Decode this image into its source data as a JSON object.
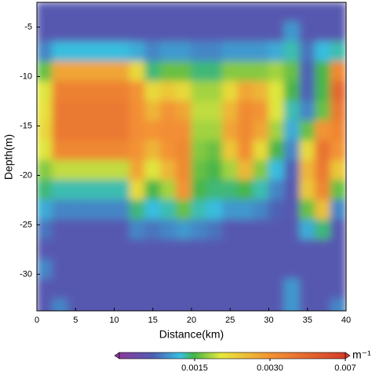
{
  "chart_data": {
    "type": "heatmap",
    "xlabel": "Distance(km)",
    "ylabel": "Depth(m)",
    "xlim": [
      0,
      40
    ],
    "ylim": [
      -33.7,
      -2.5
    ],
    "xticks": [
      0,
      5,
      10,
      15,
      20,
      25,
      30,
      35,
      40
    ],
    "yticks": [
      -5,
      -10,
      -15,
      -20,
      -25,
      -30
    ],
    "x": [
      1,
      3,
      5,
      7,
      9,
      11,
      13,
      15,
      17,
      19,
      21,
      23,
      25,
      27,
      29,
      31,
      33,
      35,
      37,
      39
    ],
    "y": [
      -3.5,
      -5.5,
      -7.5,
      -9.5,
      -11.5,
      -13.5,
      -15.5,
      -17.5,
      -19.5,
      -21.5,
      -23.5,
      -25.5,
      -27.5,
      -29.5,
      -31.5,
      -33.5
    ],
    "z": [
      [
        0.0006,
        0.0006,
        0.0006,
        0.0006,
        0.0006,
        0.0006,
        0.0006,
        0.0006,
        0.0006,
        0.0006,
        0.0006,
        0.0006,
        0.0006,
        0.0006,
        0.0006,
        0.0006,
        0.0006,
        0.0006,
        0.0006,
        0.0006
      ],
      [
        0.0006,
        0.0006,
        0.0006,
        0.0006,
        0.0006,
        0.0006,
        0.0006,
        0.0006,
        0.0006,
        0.0006,
        0.0006,
        0.0006,
        0.0006,
        0.0006,
        0.0006,
        0.0006,
        0.001,
        0.0006,
        0.0006,
        0.0006
      ],
      [
        0.0009,
        0.0012,
        0.0012,
        0.0012,
        0.0012,
        0.0012,
        0.0011,
        0.0009,
        0.001,
        0.001,
        0.0009,
        0.0009,
        0.001,
        0.001,
        0.001,
        0.0011,
        0.0013,
        0.0008,
        0.0012,
        0.0013
      ],
      [
        0.0016,
        0.0028,
        0.0028,
        0.0028,
        0.0028,
        0.0028,
        0.0022,
        0.0014,
        0.0016,
        0.0016,
        0.0014,
        0.0014,
        0.0017,
        0.0017,
        0.0017,
        0.0018,
        0.0016,
        0.0007,
        0.0015,
        0.0035
      ],
      [
        0.002,
        0.0038,
        0.0038,
        0.0038,
        0.0038,
        0.0038,
        0.003,
        0.0022,
        0.0024,
        0.0022,
        0.0018,
        0.0018,
        0.0022,
        0.0028,
        0.0026,
        0.002,
        0.0015,
        0.0007,
        0.0015,
        0.005
      ],
      [
        0.0021,
        0.0042,
        0.0042,
        0.0042,
        0.0042,
        0.0042,
        0.0032,
        0.0026,
        0.003,
        0.0028,
        0.0019,
        0.0019,
        0.0026,
        0.0034,
        0.003,
        0.002,
        0.0013,
        0.0009,
        0.0016,
        0.0042
      ],
      [
        0.0022,
        0.0042,
        0.0042,
        0.0042,
        0.0042,
        0.0042,
        0.0032,
        0.003,
        0.0032,
        0.0032,
        0.0018,
        0.0018,
        0.0028,
        0.0035,
        0.0028,
        0.0018,
        0.0011,
        0.0016,
        0.003,
        0.0036
      ],
      [
        0.002,
        0.0035,
        0.0035,
        0.0035,
        0.0035,
        0.0035,
        0.003,
        0.0026,
        0.003,
        0.0035,
        0.0017,
        0.0016,
        0.0024,
        0.0033,
        0.0022,
        0.0015,
        0.0009,
        0.0022,
        0.0045,
        0.003
      ],
      [
        0.0017,
        0.0019,
        0.0019,
        0.0019,
        0.0019,
        0.0019,
        0.0028,
        0.002,
        0.0026,
        0.0034,
        0.0016,
        0.0015,
        0.0018,
        0.0026,
        0.0017,
        0.0012,
        0.0007,
        0.0026,
        0.0042,
        0.0024
      ],
      [
        0.0014,
        0.0013,
        0.0013,
        0.0013,
        0.0013,
        0.0013,
        0.0022,
        0.0015,
        0.0018,
        0.003,
        0.0015,
        0.0014,
        0.0014,
        0.0015,
        0.0013,
        0.0009,
        0.0006,
        0.0024,
        0.0036,
        0.0016
      ],
      [
        0.0011,
        0.0009,
        0.0009,
        0.0009,
        0.0009,
        0.0009,
        0.0014,
        0.0012,
        0.0013,
        0.0016,
        0.0013,
        0.0012,
        0.001,
        0.001,
        0.0009,
        0.0007,
        0.0006,
        0.0016,
        0.0025,
        0.0009
      ],
      [
        0.0008,
        0.0006,
        0.0006,
        0.0006,
        0.0006,
        0.0006,
        0.0009,
        0.0008,
        0.0009,
        0.001,
        0.0009,
        0.0008,
        0.0006,
        0.0006,
        0.0006,
        0.0006,
        0.0006,
        0.0011,
        0.0014,
        0.0006
      ],
      [
        0.0006,
        0.0006,
        0.0006,
        0.0006,
        0.0006,
        0.0006,
        0.0006,
        0.0006,
        0.0006,
        0.0006,
        0.0006,
        0.0006,
        0.0006,
        0.0006,
        0.0006,
        0.0006,
        0.0006,
        0.0006,
        0.0006,
        0.0006
      ],
      [
        0.0009,
        0.0006,
        0.0006,
        0.0006,
        0.0006,
        0.0006,
        0.0006,
        0.0006,
        0.0006,
        0.0006,
        0.0006,
        0.0006,
        0.0006,
        0.0006,
        0.0006,
        0.0006,
        0.0006,
        0.0006,
        0.0006,
        0.0006
      ],
      [
        0.0006,
        0.0006,
        0.0006,
        0.0006,
        0.0006,
        0.0006,
        0.0006,
        0.0006,
        0.0006,
        0.0006,
        0.0006,
        0.0006,
        0.0006,
        0.0006,
        0.0006,
        0.0006,
        0.001,
        0.0006,
        0.0006,
        0.0006
      ],
      [
        0.0006,
        0.0009,
        0.0006,
        0.0006,
        0.0006,
        0.0006,
        0.0006,
        0.0006,
        0.0006,
        0.0006,
        0.0006,
        0.0006,
        0.0006,
        0.0006,
        0.0006,
        0.0006,
        0.001,
        0.0006,
        0.0006,
        0.0009
      ]
    ],
    "colorbar": {
      "range": [
        0,
        0.007
      ],
      "ticks": [
        0.0015,
        {
          "value": 0.003,
          "label": "0.0030"
        },
        0.007
      ],
      "unit": "m⁻¹",
      "colorscale": [
        [
          0,
          "#8b3a9c"
        ],
        [
          0.15,
          "#4f5db3"
        ],
        [
          0.27,
          "#38c0e0"
        ],
        [
          0.33,
          "#45b548"
        ],
        [
          0.45,
          "#e6e83c"
        ],
        [
          0.67,
          "#f39234"
        ],
        [
          1,
          "#d43b2a"
        ]
      ]
    }
  }
}
